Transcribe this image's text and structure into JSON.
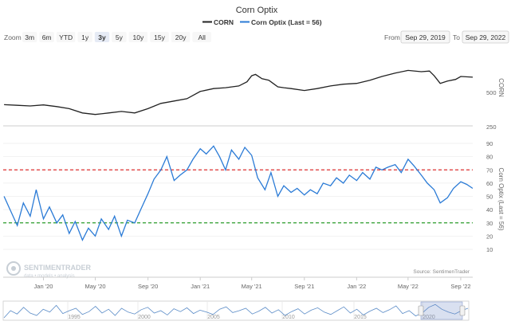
{
  "chart_data": {
    "type": "line",
    "title": "Corn Optix",
    "legend": [
      {
        "name": "CORN",
        "color": "#222222"
      },
      {
        "name": "Corn Optix (Last = 56)",
        "color": "#2b7bd6"
      }
    ],
    "legend_position": "top-center",
    "x_range": [
      "2019-09-29",
      "2022-09-29"
    ],
    "x_ticks": [
      "Jan '20",
      "May '20",
      "Sep '20",
      "Jan '21",
      "May '21",
      "Sep '21",
      "Jan '22",
      "May '22",
      "Sep '22"
    ],
    "upper_panel": {
      "ylabel": "CORN",
      "scale": "log",
      "y_ticks": [
        500,
        250
      ],
      "series": {
        "name": "CORN",
        "color": "#222222",
        "x": [
          "2019-10-01",
          "2019-11-01",
          "2019-12-01",
          "2020-01-01",
          "2020-02-01",
          "2020-03-01",
          "2020-04-01",
          "2020-05-01",
          "2020-06-01",
          "2020-07-01",
          "2020-08-01",
          "2020-09-01",
          "2020-10-01",
          "2020-11-01",
          "2020-12-01",
          "2021-01-01",
          "2021-02-01",
          "2021-03-01",
          "2021-04-01",
          "2021-04-20",
          "2021-05-01",
          "2021-05-10",
          "2021-05-25",
          "2021-06-10",
          "2021-06-20",
          "2021-07-01",
          "2021-07-15",
          "2021-08-01",
          "2021-09-01",
          "2021-10-01",
          "2021-11-01",
          "2021-12-01",
          "2022-01-01",
          "2022-02-01",
          "2022-03-01",
          "2022-04-01",
          "2022-05-01",
          "2022-06-01",
          "2022-06-20",
          "2022-07-01",
          "2022-07-15",
          "2022-08-01",
          "2022-08-20",
          "2022-09-01",
          "2022-09-29"
        ],
        "y": [
          390,
          385,
          380,
          388,
          375,
          360,
          330,
          320,
          330,
          340,
          330,
          360,
          400,
          420,
          440,
          510,
          540,
          550,
          570,
          620,
          700,
          720,
          660,
          640,
          600,
          560,
          550,
          540,
          520,
          540,
          570,
          590,
          600,
          640,
          690,
          740,
          780,
          760,
          770,
          700,
          600,
          630,
          650,
          690,
          680
        ]
      }
    },
    "lower_panel": {
      "ylabel": "Corn Optix (Last = 56)",
      "ylim": [
        10,
        90
      ],
      "y_ticks": [
        90,
        80,
        70,
        60,
        50,
        40,
        30,
        20,
        10
      ],
      "reference_lines": [
        {
          "value": 70,
          "color": "#e03030"
        },
        {
          "value": 30,
          "color": "#2a9d2a"
        }
      ],
      "series": {
        "name": "Corn Optix",
        "color": "#2b7bd6",
        "x": [
          "2019-10-01",
          "2019-10-15",
          "2019-11-01",
          "2019-11-15",
          "2019-12-01",
          "2019-12-15",
          "2020-01-01",
          "2020-01-15",
          "2020-02-01",
          "2020-02-15",
          "2020-03-01",
          "2020-03-15",
          "2020-04-01",
          "2020-04-15",
          "2020-05-01",
          "2020-05-15",
          "2020-06-01",
          "2020-06-15",
          "2020-07-01",
          "2020-07-15",
          "2020-08-01",
          "2020-08-15",
          "2020-09-01",
          "2020-09-15",
          "2020-10-01",
          "2020-10-15",
          "2020-11-01",
          "2020-11-15",
          "2020-12-01",
          "2020-12-15",
          "2021-01-01",
          "2021-01-15",
          "2021-02-01",
          "2021-02-15",
          "2021-03-01",
          "2021-03-15",
          "2021-04-01",
          "2021-04-15",
          "2021-05-01",
          "2021-05-15",
          "2021-06-01",
          "2021-06-15",
          "2021-07-01",
          "2021-07-15",
          "2021-08-01",
          "2021-08-15",
          "2021-09-01",
          "2021-09-15",
          "2021-10-01",
          "2021-10-15",
          "2021-11-01",
          "2021-11-15",
          "2021-12-01",
          "2021-12-15",
          "2022-01-01",
          "2022-01-15",
          "2022-02-01",
          "2022-02-15",
          "2022-03-01",
          "2022-03-15",
          "2022-04-01",
          "2022-04-15",
          "2022-05-01",
          "2022-05-15",
          "2022-06-01",
          "2022-06-15",
          "2022-07-01",
          "2022-07-15",
          "2022-08-01",
          "2022-08-15",
          "2022-09-01",
          "2022-09-15",
          "2022-09-29"
        ],
        "y": [
          50,
          40,
          28,
          45,
          35,
          55,
          33,
          42,
          30,
          36,
          22,
          31,
          17,
          26,
          20,
          33,
          25,
          35,
          20,
          32,
          30,
          40,
          52,
          63,
          70,
          80,
          62,
          66,
          70,
          78,
          86,
          82,
          88,
          80,
          70,
          85,
          78,
          87,
          81,
          64,
          55,
          68,
          50,
          58,
          53,
          56,
          51,
          55,
          52,
          60,
          58,
          64,
          60,
          66,
          62,
          68,
          63,
          72,
          70,
          72,
          74,
          68,
          78,
          73,
          66,
          60,
          55,
          45,
          49,
          56,
          61,
          59,
          56
        ]
      }
    },
    "range_selector": {
      "zoom_label": "Zoom",
      "buttons": [
        "3m",
        "6m",
        "YTD",
        "1y",
        "3y",
        "5y",
        "10y",
        "15y",
        "20y",
        "All"
      ],
      "selected": "3y",
      "from_label": "From",
      "from_value": "Sep 29, 2019",
      "to_label": "To",
      "to_value": "Sep 29, 2022"
    },
    "navigator": {
      "ticks": [
        "1995",
        "2000",
        "2005",
        "2010",
        "2015",
        "2020"
      ],
      "values": [
        40,
        55,
        48,
        62,
        50,
        45,
        58,
        52,
        66,
        49,
        55,
        60,
        47,
        53,
        64,
        50,
        58,
        45,
        60,
        52,
        48,
        57,
        62,
        50,
        55,
        46,
        59,
        53,
        61,
        49,
        56,
        52,
        47,
        58,
        63,
        51,
        55,
        60,
        48,
        54,
        62,
        50,
        57,
        45,
        53,
        59,
        48,
        56,
        61,
        52,
        47,
        55,
        63,
        50,
        58,
        46,
        54,
        60,
        51,
        57,
        65,
        49,
        55,
        44,
        50,
        62,
        68,
        58,
        52,
        48,
        55,
        60
      ]
    },
    "credits": "Source: SentimenTrader",
    "watermark": {
      "brand": "SENTIMENTRADER",
      "tagline": "data • models • analysis"
    }
  }
}
